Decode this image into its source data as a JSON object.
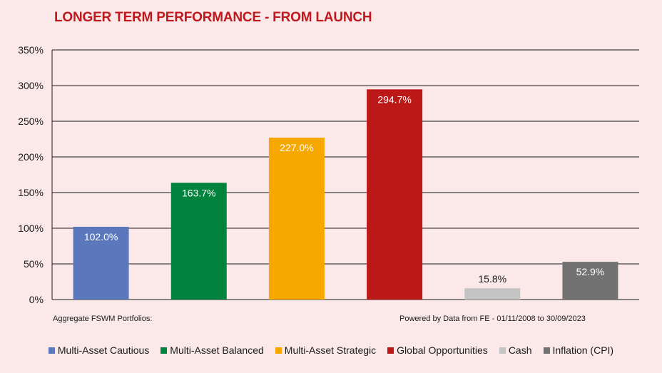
{
  "title": "LONGER TERM PERFORMANCE - FROM LAUNCH",
  "footnote_left": "Aggregate FSWM Portfolios:",
  "footnote_right": "Powered by Data from FE - 01/11/2008 to 30/09/2023",
  "chart_data": {
    "type": "bar",
    "categories": [
      "Multi-Asset Cautious",
      "Multi-Asset Balanced",
      "Multi-Asset Strategic",
      "Global Opportunities",
      "Cash",
      "Inflation (CPI)"
    ],
    "values": [
      102.0,
      163.7,
      227.0,
      294.7,
      15.8,
      52.9
    ],
    "data_labels": [
      "102.0%",
      "163.7%",
      "227.0%",
      "294.7%",
      "15.8%",
      "52.9%"
    ],
    "colors": [
      "#5b78bd",
      "#00843d",
      "#f7a800",
      "#bd1818",
      "#c4c4c4",
      "#727272"
    ],
    "label_colors": [
      "#ffffff",
      "#ffffff",
      "#ffffff",
      "#ffffff",
      "#1a1a1a",
      "#ffffff"
    ],
    "ylim": [
      0,
      350
    ],
    "yticks": [
      0,
      50,
      100,
      150,
      200,
      250,
      300,
      350
    ],
    "ytick_labels": [
      "0%",
      "50%",
      "100%",
      "150%",
      "200%",
      "250%",
      "300%",
      "350%"
    ],
    "grid": true,
    "legend_position": "bottom",
    "xlabel": "",
    "ylabel": ""
  }
}
